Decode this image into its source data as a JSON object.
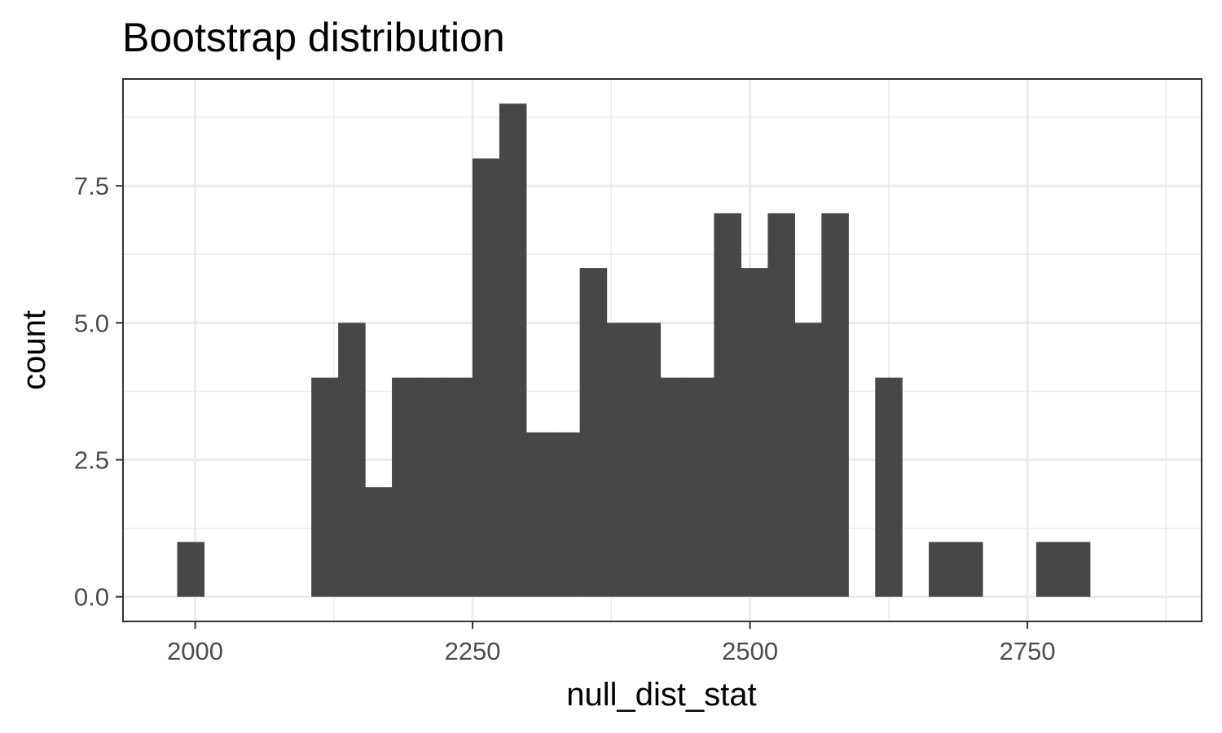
{
  "chart_data": {
    "type": "bar",
    "title": "Bootstrap distribution",
    "xlabel": "null_dist_stat",
    "ylabel": "count",
    "bin_width": 24.19,
    "bins": [
      {
        "center": 1995.9,
        "count": 1
      },
      {
        "center": 2020.1,
        "count": 0
      },
      {
        "center": 2044.3,
        "count": 0
      },
      {
        "center": 2068.5,
        "count": 0
      },
      {
        "center": 2092.6,
        "count": 0
      },
      {
        "center": 2116.8,
        "count": 4
      },
      {
        "center": 2141.0,
        "count": 5
      },
      {
        "center": 2165.2,
        "count": 2
      },
      {
        "center": 2189.4,
        "count": 4
      },
      {
        "center": 2213.6,
        "count": 4
      },
      {
        "center": 2237.8,
        "count": 4
      },
      {
        "center": 2262.0,
        "count": 8
      },
      {
        "center": 2286.2,
        "count": 9
      },
      {
        "center": 2310.4,
        "count": 3
      },
      {
        "center": 2334.6,
        "count": 3
      },
      {
        "center": 2358.7,
        "count": 6
      },
      {
        "center": 2382.9,
        "count": 5
      },
      {
        "center": 2407.1,
        "count": 5
      },
      {
        "center": 2431.3,
        "count": 4
      },
      {
        "center": 2455.5,
        "count": 4
      },
      {
        "center": 2479.7,
        "count": 7
      },
      {
        "center": 2503.9,
        "count": 6
      },
      {
        "center": 2528.1,
        "count": 7
      },
      {
        "center": 2552.3,
        "count": 5
      },
      {
        "center": 2576.5,
        "count": 7
      },
      {
        "center": 2600.7,
        "count": 0
      },
      {
        "center": 2624.9,
        "count": 4
      },
      {
        "center": 2649.0,
        "count": 0
      },
      {
        "center": 2673.2,
        "count": 1
      },
      {
        "center": 2697.4,
        "count": 1
      },
      {
        "center": 2721.6,
        "count": 0
      },
      {
        "center": 2745.8,
        "count": 0
      },
      {
        "center": 2770.0,
        "count": 1
      },
      {
        "center": 2794.2,
        "count": 1
      }
    ],
    "xlim": [
      1935,
      2907
    ],
    "ylim": [
      -0.45,
      9.45
    ],
    "x_ticks": [
      2000,
      2250,
      2500,
      2750
    ],
    "x_tick_labels": [
      "2000",
      "2250",
      "2500",
      "2750"
    ],
    "y_ticks": [
      0,
      2.5,
      5,
      7.5
    ],
    "y_tick_labels": [
      "0.0",
      "2.5",
      "5.0",
      "7.5"
    ],
    "grid": true,
    "bar_color": "#474747",
    "theme": "bw"
  }
}
